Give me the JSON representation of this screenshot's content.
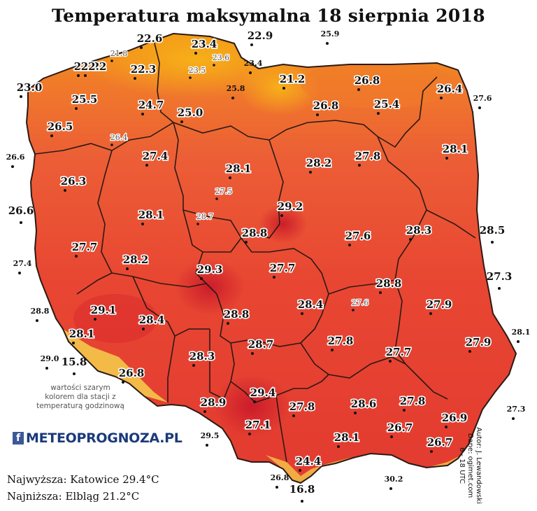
{
  "title": "Temperatura maksymalna 18 sierpnia 2018",
  "stats": {
    "highest": "Najwyższa: Katowice 29.4°C",
    "lowest": "Najniższa: Elbląg 21.2°C"
  },
  "note": "wartości szarym kolorem dla stacji z temperaturą godzinową",
  "logo": {
    "fb": "f",
    "text": "METEOPROGNOZA.PL"
  },
  "author": {
    "line1": "Autor: J. Lewandowski",
    "line2": "Dane: ogimet.com",
    "line3": "6 - 18 UTC"
  },
  "colors": {
    "cool": "#f5a300",
    "mid": "#ee6a3a",
    "warm": "#e84a34",
    "hot": "#d8252c",
    "mountain": "#f4c84a",
    "border": "#2a1a14"
  },
  "stations_main": [
    {
      "v": "22.2"
    },
    {
      "v": "22.6"
    },
    {
      "v": "23.4"
    },
    {
      "v": "22.9"
    },
    {
      "v": "22.2"
    },
    {
      "v": "22.3"
    },
    {
      "v": "21.2"
    },
    {
      "v": "26.8"
    },
    {
      "v": "23.0"
    },
    {
      "v": "25.5"
    },
    {
      "v": "24.7"
    },
    {
      "v": "25.0"
    },
    {
      "v": "26.8"
    },
    {
      "v": "25.4"
    },
    {
      "v": "26.4"
    },
    {
      "v": "26.5"
    },
    {
      "v": "27.4"
    },
    {
      "v": "28.1"
    },
    {
      "v": "28.2"
    },
    {
      "v": "27.8"
    },
    {
      "v": "28.1"
    },
    {
      "v": "26.3"
    },
    {
      "v": "29.2"
    },
    {
      "v": "28.1"
    },
    {
      "v": "28.8"
    },
    {
      "v": "27.6"
    },
    {
      "v": "28.3"
    },
    {
      "v": "27.7"
    },
    {
      "v": "28.2"
    },
    {
      "v": "29.3"
    },
    {
      "v": "27.7"
    },
    {
      "v": "28.8"
    },
    {
      "v": "29.1"
    },
    {
      "v": "28.4"
    },
    {
      "v": "28.8"
    },
    {
      "v": "28.4"
    },
    {
      "v": "27.9"
    },
    {
      "v": "28.1"
    },
    {
      "v": "27.8"
    },
    {
      "v": "27.9"
    },
    {
      "v": "28.3"
    },
    {
      "v": "28.7"
    },
    {
      "v": "27.7"
    },
    {
      "v": "26.8"
    },
    {
      "v": "29.4"
    },
    {
      "v": "28.9"
    },
    {
      "v": "27.8"
    },
    {
      "v": "28.6"
    },
    {
      "v": "27.8"
    },
    {
      "v": "26.9"
    },
    {
      "v": "27.1"
    },
    {
      "v": "28.1"
    },
    {
      "v": "26.7"
    },
    {
      "v": "26.7"
    },
    {
      "v": "24.4"
    }
  ],
  "stations_gray": [
    {
      "v": "21.8"
    },
    {
      "v": "23.6"
    },
    {
      "v": "23.5"
    },
    {
      "v": "26.4"
    },
    {
      "v": "27.5"
    },
    {
      "v": "28.7"
    },
    {
      "v": "27.6"
    }
  ],
  "stations_out": [
    {
      "v": "25.9"
    },
    {
      "v": "23.4"
    },
    {
      "v": "25.8"
    },
    {
      "v": "27.6"
    },
    {
      "v": "26.6"
    },
    {
      "v": "27.4"
    },
    {
      "v": "28.8"
    },
    {
      "v": "29.0"
    },
    {
      "v": "28.1"
    },
    {
      "v": "27.3"
    },
    {
      "v": "29.5"
    },
    {
      "v": "26.8"
    },
    {
      "v": "30.2"
    }
  ],
  "stations_big": [
    {
      "v": "26.6"
    },
    {
      "v": "28.5"
    },
    {
      "v": "27.3"
    },
    {
      "v": "15.8"
    },
    {
      "v": "16.8"
    }
  ]
}
